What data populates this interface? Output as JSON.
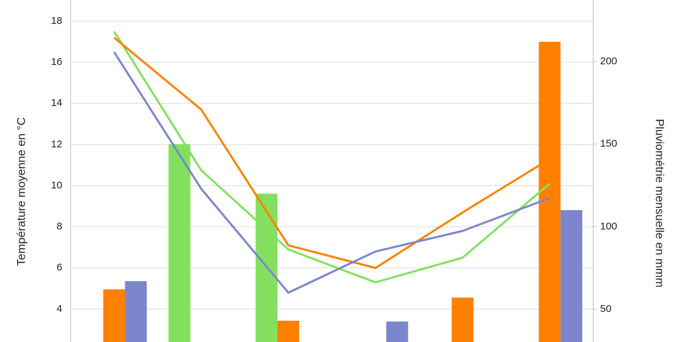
{
  "chart_data": {
    "type": "combo",
    "y_label": "Température moyenne en °C",
    "y2_label": "Pluviométrie mensuelle en mmm",
    "categories": [
      null,
      null,
      null,
      null,
      null,
      null
    ],
    "ylim": [
      2.4,
      19.03
    ],
    "yticks": [
      4,
      6,
      8,
      10,
      12,
      14,
      16,
      18
    ],
    "y2lim": [
      30.1,
      237.3
    ],
    "y2ticks": [
      50,
      100,
      150,
      200
    ],
    "grid": true,
    "series": [
      {
        "type": "bar",
        "axis": "y2",
        "color": "#83e05e",
        "values": [
          null,
          150,
          120,
          null,
          null,
          null
        ]
      },
      {
        "type": "bar",
        "axis": "y2",
        "color": "#ff8000",
        "values": [
          62,
          null,
          43,
          null,
          57,
          212
        ]
      },
      {
        "type": "bar",
        "axis": "y2",
        "color": "#7b86cc",
        "values": [
          67,
          null,
          null,
          42.5,
          null,
          110
        ]
      },
      {
        "type": "line",
        "color": "#83e05e",
        "values": [
          17.5,
          10.75,
          6.9,
          5.3,
          6.5,
          10.1
        ]
      },
      {
        "type": "line",
        "color": "#ff8000",
        "values": [
          17.2,
          13.7,
          7.1,
          6.0,
          8.7,
          11.3
        ]
      },
      {
        "type": "line",
        "color": "#7b86cc",
        "values": [
          16.5,
          9.85,
          4.8,
          6.8,
          7.8,
          9.4
        ]
      }
    ]
  }
}
